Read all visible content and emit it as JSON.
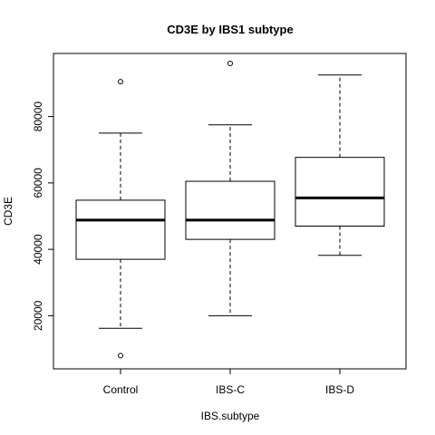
{
  "chart_data": {
    "type": "boxplot",
    "title": "CD3E by IBS1 subtype",
    "xlabel": "IBS.subtype",
    "ylabel": "CD3E",
    "ylim": [
      4000,
      99000
    ],
    "yticks": [
      20000,
      40000,
      60000,
      80000
    ],
    "grid": false,
    "legend": "none",
    "colors": {
      "box_fill": "#ffffff",
      "stroke": "#000000"
    },
    "categories": [
      "Control",
      "IBS-C",
      "IBS-D"
    ],
    "boxes": [
      {
        "category": "Control",
        "whisker_low": 16200,
        "q1": 37000,
        "median": 48800,
        "q3": 54800,
        "whisker_high": 75000,
        "outliers": [
          90500,
          8000
        ]
      },
      {
        "category": "IBS-C",
        "whisker_low": 20000,
        "q1": 43000,
        "median": 48800,
        "q3": 60500,
        "whisker_high": 77500,
        "outliers": [
          96000
        ]
      },
      {
        "category": "IBS-D",
        "whisker_low": 38200,
        "q1": 47000,
        "median": 55500,
        "q3": 67700,
        "whisker_high": 92500,
        "outliers": []
      }
    ]
  }
}
